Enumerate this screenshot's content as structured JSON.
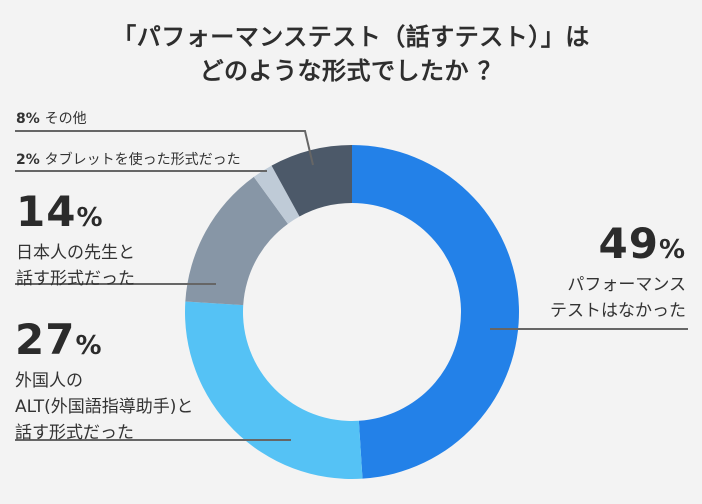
{
  "title": {
    "line1": "「パフォーマンステスト（話すテスト）」は",
    "line2": "どのような形式でしたか ？"
  },
  "labels": {
    "other": {
      "pct": "8%",
      "text": "その他"
    },
    "tablet": {
      "pct": "2%",
      "text": "タブレットを使った形式だった"
    },
    "japanese": {
      "num": "14",
      "pct": "%",
      "line1": "日本人の先生と",
      "line2": "話す形式だった"
    },
    "alt": {
      "num": "27",
      "pct": "%",
      "line1": "外国人の",
      "line2": "ALT(外国語指導助手)と",
      "line3": "話す形式だった"
    },
    "none": {
      "num": "49",
      "pct": "%",
      "line1": "パフォーマンス",
      "line2": "テストはなかった"
    }
  },
  "colors": {
    "none": "#2381e8",
    "alt": "#55c2f5",
    "japanese": "#8796a6",
    "tablet": "#bfcbd7",
    "other": "#4c5969",
    "background": "#f3f3f3",
    "leader": "#666666"
  },
  "chart_data": {
    "type": "pie",
    "variant": "donut",
    "title": "「パフォーマンステスト（話すテスト）」はどのような形式でしたか ？",
    "categories": [
      "パフォーマンステストはなかった",
      "外国人のALT(外国語指導助手)と話す形式だった",
      "日本人の先生と話す形式だった",
      "タブレットを使った形式だった",
      "その他"
    ],
    "values": [
      49,
      27,
      14,
      2,
      8
    ],
    "unit": "%",
    "start_angle": "12 o'clock",
    "direction": "clockwise",
    "legend": "callout labels with leader lines"
  }
}
